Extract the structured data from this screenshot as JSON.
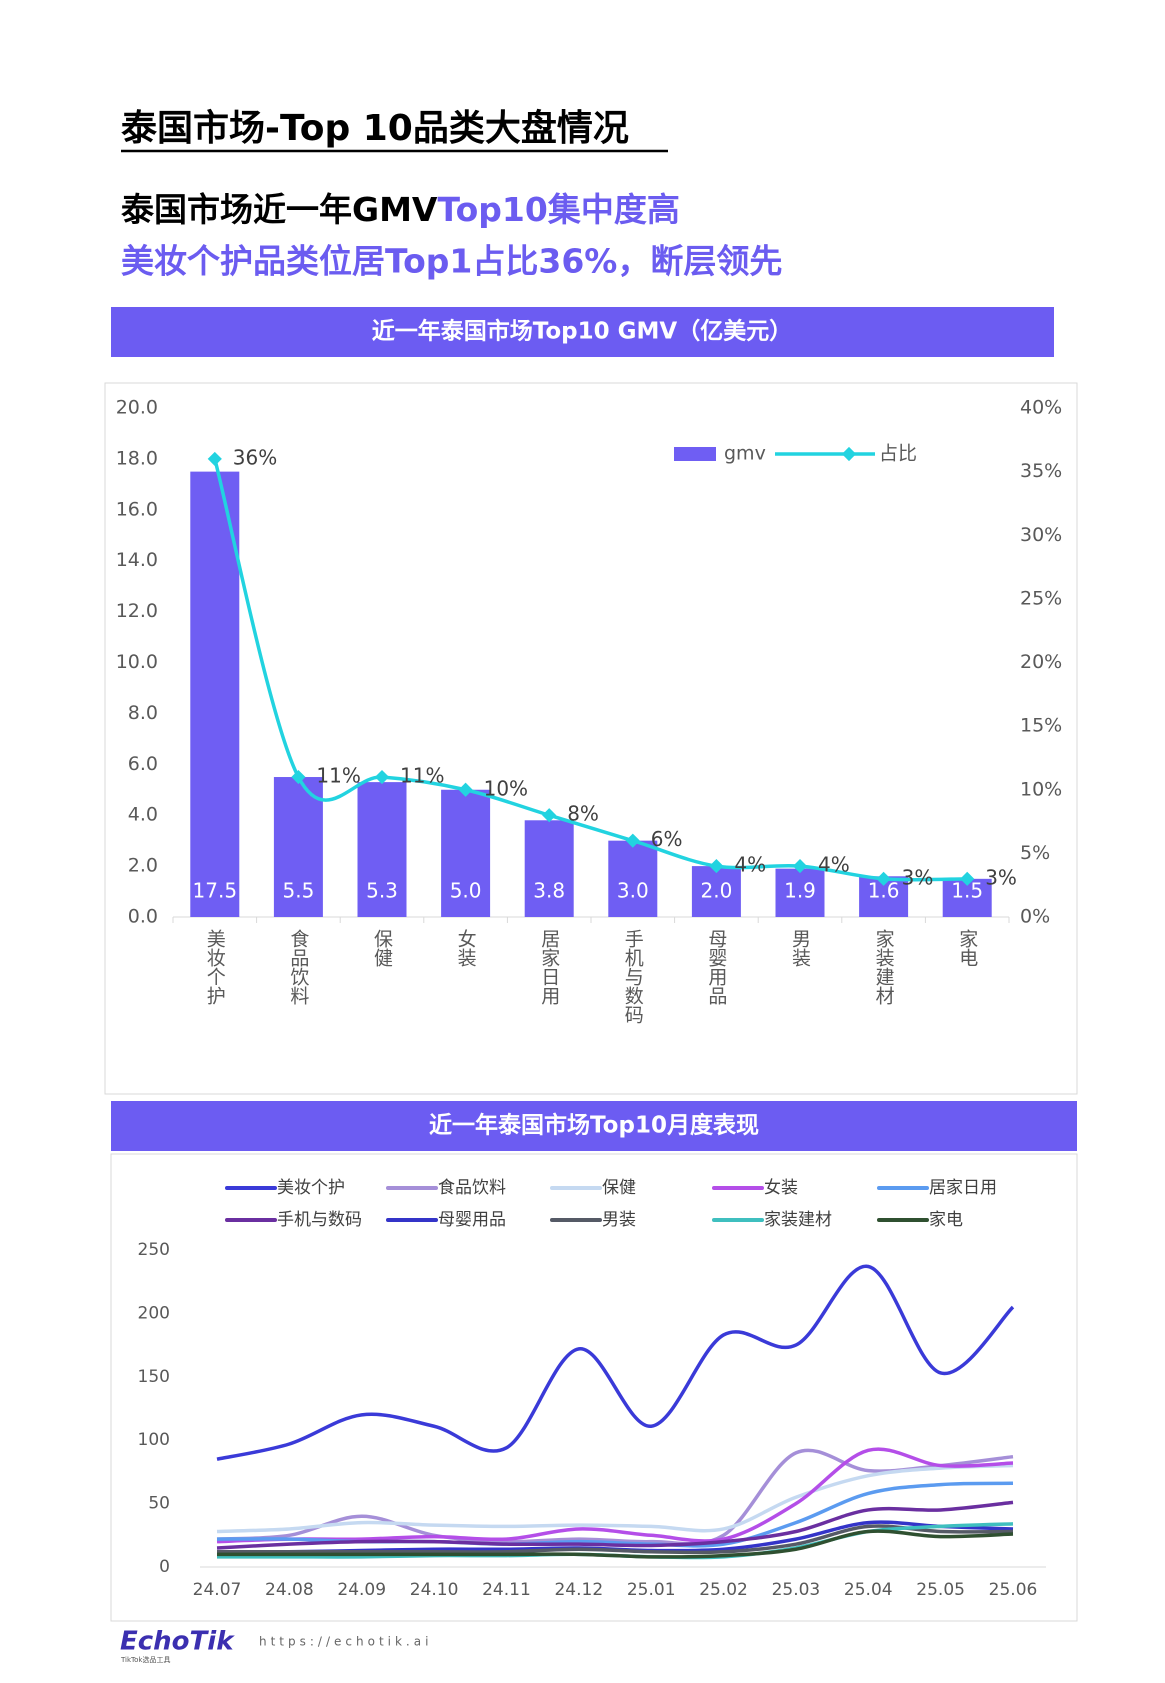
{
  "header": {
    "title": "泰国市场-Top 10品类大盘情况"
  },
  "headline": [
    "泰国市场近一年GMV",
    "Top10集中度高",
    "美妆个护品类位居Top1占比36%，断层领先"
  ],
  "chart_data": [
    {
      "type": "bar",
      "title": "近一年泰国市场Top10 GMV（亿美元）",
      "categories": [
        "美妆个护",
        "食品饮料",
        "保健",
        "女装",
        "居家日用",
        "手机与数码",
        "母婴用品",
        "男装",
        "家装建材",
        "家电"
      ],
      "series": [
        {
          "name": "gmv",
          "type": "bar",
          "color": "#6f5ef3",
          "values": [
            17.5,
            5.5,
            5.3,
            5.0,
            3.8,
            3.0,
            2.0,
            1.9,
            1.6,
            1.5
          ],
          "value_labels": [
            "17.5",
            "5.5",
            "5.3",
            "5.0",
            "3.8",
            "3.0",
            "2.0",
            "1.9",
            "1.6",
            "1.5"
          ]
        },
        {
          "name": "占比",
          "type": "line",
          "axis": "y2",
          "color": "#22d3e0",
          "values": [
            36,
            11,
            11,
            10,
            8,
            6,
            4,
            4,
            3,
            3
          ],
          "value_labels": [
            "36%",
            "11%",
            "11%",
            "10%",
            "8%",
            "6%",
            "4%",
            "4%",
            "3%",
            "3%"
          ]
        }
      ],
      "ylim": [
        0,
        20
      ],
      "yticks": [
        {
          "value": 0,
          "label": "0.0"
        },
        {
          "value": 2,
          "label": "2.0"
        },
        {
          "value": 4,
          "label": "4.0"
        },
        {
          "value": 6,
          "label": "6.0"
        },
        {
          "value": 8,
          "label": "8.0"
        },
        {
          "value": 10,
          "label": "10.0"
        },
        {
          "value": 12,
          "label": "12.0"
        },
        {
          "value": 14,
          "label": "14.0"
        },
        {
          "value": 16,
          "label": "16.0"
        },
        {
          "value": 18,
          "label": "18.0"
        },
        {
          "value": 20,
          "label": "20.0"
        }
      ],
      "y2lim": [
        0,
        40
      ],
      "y2ticks": [
        {
          "value": 0,
          "label": "0%"
        },
        {
          "value": 5,
          "label": "5%"
        },
        {
          "value": 10,
          "label": "10%"
        },
        {
          "value": 15,
          "label": "15%"
        },
        {
          "value": 20,
          "label": "20%"
        },
        {
          "value": 25,
          "label": "25%"
        },
        {
          "value": 30,
          "label": "30%"
        },
        {
          "value": 35,
          "label": "35%"
        },
        {
          "value": 40,
          "label": "40%"
        }
      ]
    },
    {
      "type": "line",
      "title": "近一年泰国市场Top10月度表现",
      "categories": [
        "24.07",
        "24.08",
        "24.09",
        "24.10",
        "24.11",
        "24.12",
        "25.01",
        "25.02",
        "25.03",
        "25.04",
        "25.05",
        "25.06"
      ],
      "series": [
        {
          "name": "美妆个护",
          "color": "#3a3ad8",
          "values": [
            85,
            97,
            120,
            111,
            94,
            172,
            111,
            183,
            175,
            237,
            153,
            205
          ]
        },
        {
          "name": "食品饮料",
          "color": "#a58fd8",
          "values": [
            22,
            25,
            40,
            25,
            20,
            22,
            20,
            25,
            90,
            76,
            80,
            87
          ]
        },
        {
          "name": "保健",
          "color": "#c5d9f1",
          "values": [
            28,
            30,
            35,
            33,
            32,
            33,
            32,
            30,
            55,
            72,
            78,
            80
          ]
        },
        {
          "name": "女装",
          "color": "#b44ee8",
          "values": [
            20,
            22,
            22,
            24,
            22,
            30,
            25,
            22,
            50,
            92,
            80,
            82
          ]
        },
        {
          "name": "居家日用",
          "color": "#5b9bf0",
          "values": [
            22,
            22,
            20,
            20,
            18,
            20,
            18,
            18,
            35,
            58,
            65,
            66
          ]
        },
        {
          "name": "手机与数码",
          "color": "#6a2fa0",
          "values": [
            15,
            18,
            20,
            20,
            18,
            18,
            17,
            20,
            28,
            45,
            45,
            51
          ]
        },
        {
          "name": "母婴用品",
          "color": "#3434c8",
          "values": [
            12,
            12,
            13,
            14,
            14,
            15,
            13,
            14,
            22,
            35,
            32,
            30
          ]
        },
        {
          "name": "男装",
          "color": "#555a66",
          "values": [
            12,
            12,
            12,
            12,
            12,
            14,
            12,
            12,
            18,
            32,
            28,
            28
          ]
        },
        {
          "name": "家装建材",
          "color": "#3fbfbf",
          "values": [
            8,
            8,
            8,
            9,
            9,
            10,
            8,
            8,
            15,
            28,
            32,
            34
          ]
        },
        {
          "name": "家电",
          "color": "#2f5030",
          "values": [
            10,
            10,
            10,
            10,
            10,
            10,
            8,
            9,
            14,
            28,
            24,
            26
          ]
        }
      ],
      "ylim": [
        0,
        250
      ],
      "yticks": [
        0,
        50,
        100,
        150,
        200,
        250
      ]
    }
  ],
  "footer": {
    "brand": "EchoTik",
    "tagline": "TikTok选品工具",
    "url": "https://echotik.ai"
  }
}
